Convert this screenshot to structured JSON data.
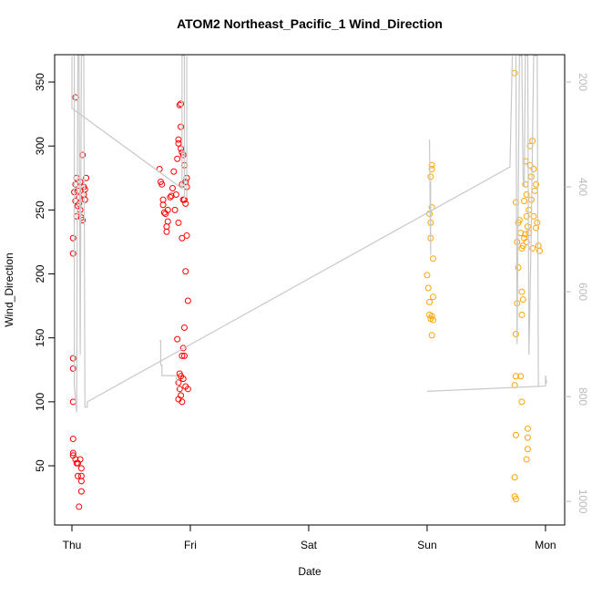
{
  "chart_data": {
    "type": "scatter",
    "title": "ATOM2 Northeast_Pacific_1 Wind_Direction",
    "xlabel": "Date",
    "ylabel": "Wind_Direction",
    "xlim": [
      -0.146,
      4.162
    ],
    "xticks": [
      {
        "value": 0,
        "label": "Thu"
      },
      {
        "value": 1,
        "label": "Fri"
      },
      {
        "value": 2,
        "label": "Sat"
      },
      {
        "value": 3,
        "label": "Sun"
      },
      {
        "value": 4,
        "label": "Mon"
      }
    ],
    "ylim": [
      3.7,
      371.4
    ],
    "yticks": [
      50,
      100,
      150,
      200,
      250,
      300,
      350
    ],
    "y2lim": [
      1045,
      147.8
    ],
    "y2ticks": [
      200,
      400,
      600,
      800,
      1000
    ],
    "series": [
      {
        "color": "#ff0000",
        "x": [
          0.01,
          0.01,
          0.01,
          0.01,
          0.01,
          0.01,
          0.01,
          0.01,
          0.03,
          0.04,
          0.05,
          0.05,
          0.06,
          0.07,
          0.08,
          0.08,
          0.08,
          0.08,
          0.03,
          0.09,
          0.03,
          0.04,
          0.05,
          0.06,
          0.07,
          0.08,
          0.1,
          0.11,
          0.12,
          0.03,
          0.04,
          0.05,
          0.06,
          0.07,
          0.09,
          0.02,
          0.1,
          0.11,
          0.74,
          0.75,
          0.76,
          0.77,
          0.77,
          0.78,
          0.79,
          0.8,
          0.8,
          0.81,
          0.81,
          0.83,
          0.84,
          0.85,
          0.86,
          0.87,
          0.88,
          0.89,
          0.9,
          0.9,
          0.91,
          0.92,
          0.92,
          0.92,
          0.93,
          0.94,
          0.95,
          0.96,
          0.97,
          0.97,
          0.93,
          0.94,
          0.95,
          0.96,
          0.9,
          0.93,
          0.97,
          0.96,
          0.98,
          0.95,
          0.89,
          0.94,
          0.93,
          0.95,
          0.91,
          0.92,
          0.9,
          0.91,
          0.92,
          0.9,
          0.94,
          0.96,
          0.98,
          0.93
        ],
        "y": [
          100,
          134,
          126,
          228,
          216,
          71,
          60,
          58,
          55,
          52,
          52,
          42,
          18,
          55,
          48,
          42,
          38,
          30,
          338,
          293,
          270,
          275,
          265,
          260,
          250,
          244,
          268,
          266,
          275,
          257,
          245,
          253,
          255,
          272,
          242,
          264,
          262,
          258,
          282,
          272,
          270,
          258,
          254,
          248,
          247,
          233,
          237,
          241,
          250,
          260,
          261,
          267,
          280,
          250,
          262,
          290,
          302,
          305,
          332,
          333,
          315,
          298,
          295,
          293,
          285,
          272,
          268,
          275,
          270,
          258,
          258,
          255,
          240,
          228,
          230,
          202,
          179,
          158,
          149,
          142,
          136,
          136,
          122,
          120,
          115,
          110,
          105,
          102,
          118,
          112,
          110,
          100
        ]
      },
      {
        "color": "#ffa500",
        "x": [
          3.0,
          3.01,
          3.02,
          3.02,
          3.03,
          3.04,
          3.05,
          3.04,
          3.02,
          3.03,
          3.03,
          3.04,
          3.03,
          3.04,
          3.04,
          3.05,
          3.05,
          3.74,
          3.75,
          3.76,
          3.77,
          3.77,
          3.76,
          3.75,
          3.75,
          3.74,
          3.75,
          3.74,
          3.74,
          3.75,
          3.78,
          3.79,
          3.8,
          3.8,
          3.81,
          3.8,
          3.79,
          3.8,
          3.82,
          3.83,
          3.83,
          3.84,
          3.84,
          3.85,
          3.86,
          3.87,
          3.87,
          3.88,
          3.89,
          3.9,
          3.91,
          3.92,
          3.93,
          3.94,
          3.95,
          3.85,
          3.85,
          3.85,
          3.84,
          3.82,
          3.81,
          3.83,
          3.84,
          3.86,
          3.88,
          3.9,
          3.92,
          3.89
        ],
        "y": [
          199,
          189,
          178,
          168,
          165,
          167,
          182,
          152,
          247,
          240,
          228,
          252,
          276,
          282,
          285,
          212,
          164,
          357,
          256,
          225,
          240,
          205,
          177,
          153,
          120,
          113,
          74,
          41,
          26,
          24,
          242,
          232,
          220,
          186,
          180,
          168,
          120,
          100,
          257,
          270,
          288,
          262,
          245,
          237,
          250,
          300,
          285,
          276,
          304,
          282,
          265,
          270,
          240,
          222,
          218,
          79,
          72,
          63,
          55,
          228,
          222,
          231,
          225,
          232,
          258,
          245,
          236,
          220
        ]
      },
      {
        "color": "#c8c8c8",
        "axis": "y2",
        "x": [
          0,
          0,
          0.93,
          0.93,
          0.95,
          0.95,
          0.97,
          0.97,
          0.97,
          0.74,
          0.75,
          0.75,
          0.76,
          0.76,
          0.88,
          0.9,
          0.9,
          0.02,
          0.02,
          0.04,
          0.05,
          0.06,
          0.07,
          0.08,
          0.1,
          0.11,
          0.13,
          0.13,
          3.7,
          3.72,
          3.72,
          3.0,
          3.0,
          4.0,
          4.0,
          4.01,
          4.01,
          3.02,
          3.03,
          3.03,
          3.03,
          3.75,
          3.76,
          3.78,
          3.8,
          3.81,
          3.82,
          3.83,
          3.85,
          3.86,
          3.88,
          3.9,
          3.93,
          3.94
        ],
        "y": [
          150,
          250,
          403,
          150,
          150,
          420,
          420,
          150,
          null,
          693,
          693,
          740,
          740,
          760,
          760,
          790,
          null,
          150,
          780,
          830,
          150,
          150,
          720,
          150,
          150,
          820,
          820,
          810,
          362,
          150,
          null,
          790,
          790,
          780,
          760,
          775,
          null,
          310,
          530,
          390,
          null,
          150,
          700,
          150,
          150,
          380,
          400,
          150,
          150,
          720,
          480,
          150,
          150,
          780
        ]
      }
    ]
  }
}
